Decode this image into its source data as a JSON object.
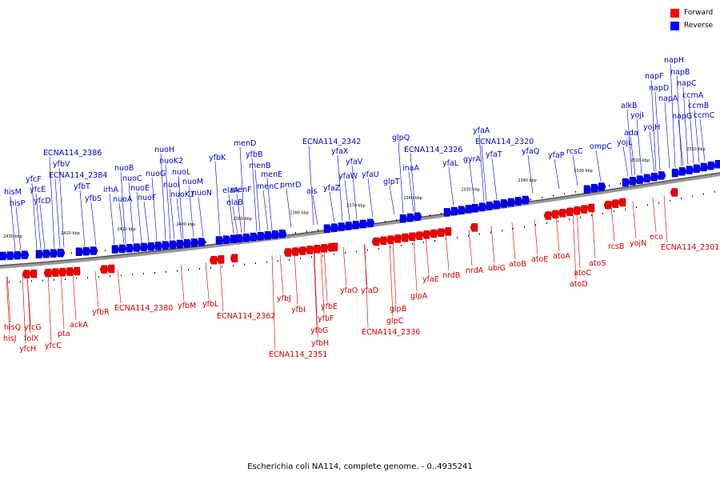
{
  "legend": {
    "forward": {
      "label": "Forward",
      "color": "#ff0000"
    },
    "reverse": {
      "label": "Reverse",
      "color": "#0000ff"
    }
  },
  "caption": "Escherichia coli NA114, complete genome. - 0..4935241",
  "scale_labels": [
    "2430 kbp",
    "2420 kbp",
    "2410 kbp",
    "2400 kbp",
    "2390 kbp",
    "2380 kbp",
    "2370 kbp",
    "2360 kbp",
    "2350 kbp",
    "2340 kbp",
    "2330 kbp",
    "2320 kbp",
    "2310 kbp"
  ],
  "reverse_genes": [
    "hisM",
    "hisP",
    "yfcF",
    "yfcE",
    "yfcD",
    "ECNA114_2386",
    "yfbV",
    "ECNA114_2384",
    "yfbT",
    "yfbS",
    "irhA",
    "nuoB",
    "nuoA",
    "nuoC",
    "nuoE",
    "nuoF",
    "nuoG",
    "nuoH",
    "nuoK2",
    "nuoI",
    "nuoL",
    "nuoK1",
    "nuoM",
    "nuoN",
    "yfbK",
    "elaA",
    "elaB",
    "menF",
    "menD",
    "yfbB",
    "menB",
    "menE",
    "menC",
    "pmrD",
    "ais",
    "yfaZ",
    "ECNA114_2342",
    "yfaX",
    "yfaW",
    "yfaV",
    "yfaU",
    "glpT",
    "glpQ",
    "inaA",
    "ECNA114_2326",
    "yfaL",
    "gyrA",
    "yfaA",
    "ECNA114_2320",
    "yfaT",
    "yfaQ",
    "yfaP",
    "rcsC",
    "ompC",
    "alkB",
    "ada",
    "yojI",
    "yojL",
    "yojH",
    "napF",
    "napD",
    "napH",
    "napB",
    "napC",
    "napA",
    "napG",
    "ccmA",
    "ccmB",
    "ccmC"
  ],
  "forward_genes": [
    "hisQ",
    "hisJ",
    "yfcG",
    "folX",
    "yfcH",
    "yfcC",
    "pta",
    "ackA",
    "yfbR",
    "ECNA114_2380",
    "yfbM",
    "yfbL",
    "ECNA114_2362",
    "yfbJ",
    "yfbI",
    "yfbE",
    "yfbF",
    "yfbG",
    "yfbH",
    "ECNA114_2351",
    "yfaO",
    "yfaD",
    "glpC",
    "glpB",
    "glpA",
    "ECNA114_2336",
    "yfaE",
    "nrdB",
    "nrdA",
    "ubiG",
    "atoB",
    "atoE",
    "atoA",
    "atoC",
    "atoD",
    "atoS",
    "rcsB",
    "yojN",
    "eco",
    "ECNA114_2301"
  ]
}
